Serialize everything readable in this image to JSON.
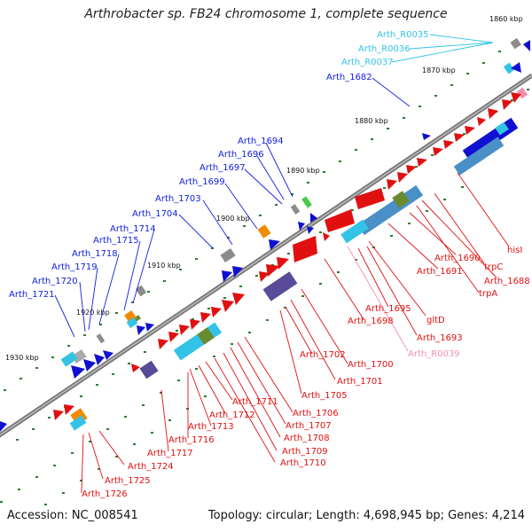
{
  "title": "Arthrobacter sp. FB24 chromosome 1, complete sequence",
  "accession": "Accession: NC_008541",
  "summary": "Topology: circular; Length: 4,698,945 bp; Genes: 4,214",
  "scale_labels": [
    "1860 kbp",
    "1870 kbp",
    "1880 kbp",
    "1890 kbp",
    "1900 kbp",
    "1910 kbp",
    "1920 kbp",
    "1930 kbp"
  ],
  "upper_labels": [
    "Arth_R0035",
    "Arth_R0036",
    "Arth_R0037",
    "Arth_1682",
    "Arth_1694",
    "Arth_1696",
    "Arth_1697",
    "Arth_1699",
    "Arth_1703",
    "Arth_1704",
    "Arth_1714",
    "Arth_1715",
    "Arth_1718",
    "Arth_1719",
    "Arth_1720",
    "Arth_1721"
  ],
  "lower_labels": [
    "hisI",
    "trpC",
    "Arth_1688",
    "trpA",
    "Arth_1690",
    "Arth_1691",
    "gltD",
    "Arth_1693",
    "Arth_R0039",
    "Arth_1695",
    "Arth_1698",
    "Arth_1700",
    "Arth_1701",
    "Arth_1702",
    "Arth_1705",
    "Arth_1706",
    "Arth_1707",
    "Arth_1708",
    "Arth_1709",
    "Arth_1710",
    "Arth_1711",
    "Arth_1712",
    "Arth_1713",
    "Arth_1716",
    "Arth_1717",
    "Arth_1724",
    "Arth_1725",
    "Arth_1726"
  ],
  "colors": {
    "backbone": "#808080",
    "tick": "#2e7d32",
    "forward_cds": "#1010d0",
    "reverse_cds": "#e01010",
    "trna": "#33c3e6",
    "rrna": "#f28fb3",
    "other": "#f08c00",
    "annotation_bar": "#4a90c8",
    "green_block": "#6a8a2e",
    "purple_block": "#5a4a9a",
    "gray_block": "#8c8c8c"
  }
}
